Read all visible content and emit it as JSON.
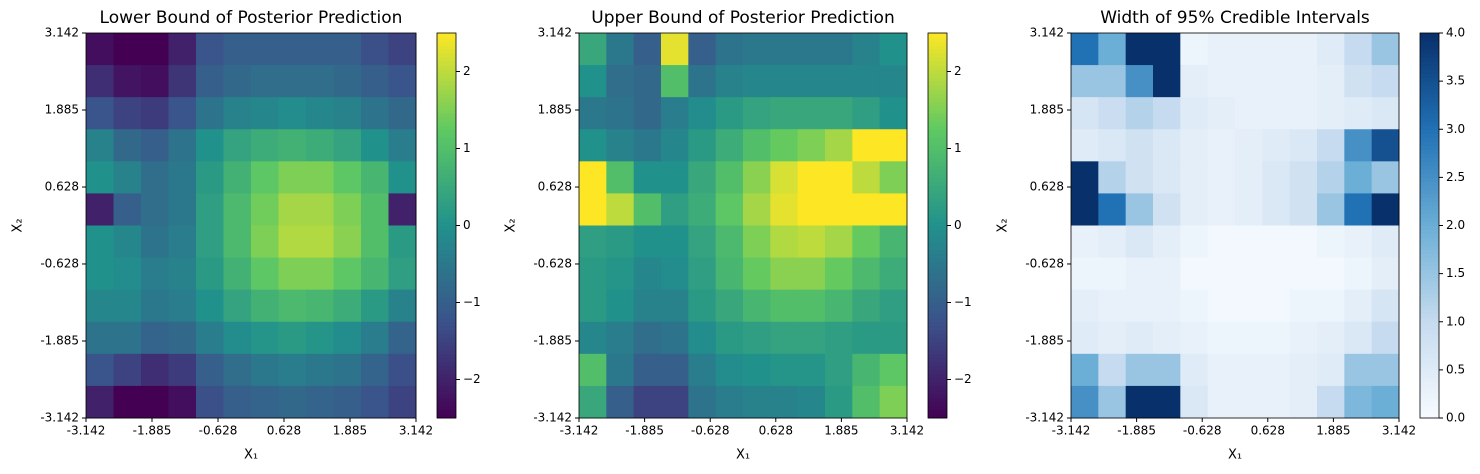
{
  "chart_data": [
    {
      "type": "heatmap",
      "title": "Lower Bound of Posterior Prediction",
      "x_label": "X₁",
      "y_label": "X₂",
      "xlim": [
        -3.142,
        3.142
      ],
      "ylim": [
        -3.142,
        3.142
      ],
      "xticks": [
        -3.142,
        -1.885,
        -0.628,
        0.628,
        1.885,
        3.142
      ],
      "yticks": [
        -3.142,
        -1.885,
        -0.628,
        0.628,
        1.885,
        3.142
      ],
      "cmap": "viridis",
      "clim": [
        -2.5,
        2.5
      ],
      "cticks": [
        {
          "value": -2,
          "label": "−2"
        },
        {
          "value": -1,
          "label": "−1"
        },
        0,
        1,
        2
      ],
      "z": [
        [
          -2.3,
          -2.5,
          -2.5,
          -2.0,
          -1.2,
          -1.0,
          -1.0,
          -1.0,
          -1.0,
          -1.0,
          -1.3,
          -1.5
        ],
        [
          -1.8,
          -2.2,
          -2.3,
          -1.7,
          -1.0,
          -0.8,
          -0.7,
          -0.7,
          -0.7,
          -0.8,
          -1.0,
          -1.2
        ],
        [
          -1.2,
          -1.5,
          -1.6,
          -1.2,
          -0.6,
          -0.3,
          -0.2,
          -0.1,
          -0.2,
          -0.3,
          -0.6,
          -0.8
        ],
        [
          -0.3,
          -0.8,
          -1.0,
          -0.6,
          0.0,
          0.4,
          0.6,
          0.7,
          0.6,
          0.4,
          0.0,
          -0.4
        ],
        [
          0.0,
          -0.3,
          -0.7,
          -0.5,
          0.2,
          0.7,
          1.2,
          1.5,
          1.5,
          1.2,
          0.8,
          0.0
        ],
        [
          -2.0,
          -1.0,
          -0.7,
          -0.5,
          0.3,
          0.9,
          1.4,
          1.8,
          1.8,
          1.5,
          1.0,
          -2.0
        ],
        [
          0.0,
          -0.2,
          -0.6,
          -0.4,
          0.3,
          0.9,
          1.5,
          1.9,
          1.9,
          1.6,
          1.0,
          0.2
        ],
        [
          0.0,
          -0.1,
          -0.4,
          -0.3,
          0.2,
          0.7,
          1.2,
          1.5,
          1.5,
          1.2,
          0.8,
          0.3
        ],
        [
          -0.2,
          -0.2,
          -0.5,
          -0.4,
          0.0,
          0.4,
          0.7,
          0.9,
          0.8,
          0.6,
          0.2,
          -0.3
        ],
        [
          -0.6,
          -0.6,
          -0.9,
          -0.8,
          -0.4,
          -0.1,
          0.1,
          0.2,
          0.1,
          -0.1,
          -0.4,
          -0.9
        ],
        [
          -1.2,
          -1.5,
          -1.8,
          -1.6,
          -1.0,
          -0.7,
          -0.5,
          -0.4,
          -0.5,
          -0.6,
          -0.9,
          -1.3
        ],
        [
          -2.0,
          -2.5,
          -2.5,
          -2.3,
          -1.3,
          -1.0,
          -0.9,
          -0.8,
          -0.9,
          -1.0,
          -1.2,
          -1.5
        ]
      ]
    },
    {
      "type": "heatmap",
      "title": "Upper Bound of Posterior Prediction",
      "x_label": "X₁",
      "y_label": "X₂",
      "xlim": [
        -3.142,
        3.142
      ],
      "ylim": [
        -3.142,
        3.142
      ],
      "xticks": [
        -3.142,
        -1.885,
        -0.628,
        0.628,
        1.885,
        3.142
      ],
      "yticks": [
        -3.142,
        -1.885,
        -0.628,
        0.628,
        1.885,
        3.142
      ],
      "cmap": "viridis",
      "clim": [
        -2.5,
        2.5
      ],
      "cticks": [
        {
          "value": -2,
          "label": "−2"
        },
        {
          "value": -1,
          "label": "−1"
        },
        0,
        1,
        2
      ],
      "z": [
        [
          0.5,
          -0.5,
          -1.0,
          2.3,
          -1.0,
          -0.6,
          -0.5,
          -0.5,
          -0.5,
          -0.5,
          -0.3,
          0.0
        ],
        [
          0.0,
          -0.7,
          -0.8,
          1.0,
          -0.6,
          -0.3,
          -0.2,
          -0.2,
          -0.2,
          -0.2,
          -0.2,
          -0.2
        ],
        [
          -0.5,
          -0.6,
          -0.8,
          -0.4,
          -0.1,
          0.2,
          0.4,
          0.5,
          0.5,
          0.5,
          0.3,
          0.0
        ],
        [
          0.0,
          -0.3,
          -0.5,
          -0.2,
          0.2,
          0.6,
          1.0,
          1.3,
          1.5,
          1.8,
          2.5,
          2.5
        ],
        [
          2.5,
          1.0,
          0.0,
          0.0,
          0.5,
          1.0,
          1.6,
          2.2,
          2.5,
          2.5,
          2.0,
          1.5
        ],
        [
          2.5,
          2.0,
          1.0,
          0.3,
          0.6,
          1.2,
          1.8,
          2.3,
          2.5,
          2.5,
          2.5,
          2.5
        ],
        [
          0.3,
          0.2,
          0.0,
          0.0,
          0.4,
          0.9,
          1.5,
          1.9,
          2.0,
          1.8,
          1.3,
          0.8
        ],
        [
          0.2,
          0.1,
          -0.2,
          -0.1,
          0.3,
          0.8,
          1.3,
          1.6,
          1.6,
          1.3,
          0.9,
          0.6
        ],
        [
          0.2,
          0.0,
          -0.3,
          -0.3,
          0.2,
          0.5,
          0.8,
          1.0,
          1.0,
          0.8,
          0.5,
          0.3
        ],
        [
          -0.2,
          -0.4,
          -0.7,
          -0.6,
          -0.1,
          0.2,
          0.3,
          0.4,
          0.4,
          0.3,
          0.2,
          0.2
        ],
        [
          1.0,
          -0.5,
          -1.0,
          -1.0,
          -0.4,
          -0.1,
          0.0,
          0.1,
          0.1,
          0.3,
          0.8,
          1.2
        ],
        [
          0.5,
          -1.0,
          -1.5,
          -1.5,
          -0.6,
          -0.4,
          -0.3,
          -0.3,
          -0.2,
          0.2,
          1.0,
          1.5
        ]
      ]
    },
    {
      "type": "heatmap",
      "title": "Width of 95% Credible Intervals",
      "x_label": "X₁",
      "y_label": "X₂",
      "xlim": [
        -3.142,
        3.142
      ],
      "ylim": [
        -3.142,
        3.142
      ],
      "xticks": [
        -3.142,
        -1.885,
        -0.628,
        0.628,
        1.885,
        3.142
      ],
      "yticks": [
        -3.142,
        -1.885,
        -0.628,
        0.628,
        1.885,
        3.142
      ],
      "cmap": "blues",
      "clim": [
        0,
        4
      ],
      "cticks": [
        {
          "value": 0,
          "label": "0.0"
        },
        0.5,
        {
          "value": 1,
          "label": "1.0"
        },
        1.5,
        {
          "value": 2,
          "label": "2.0"
        },
        2.5,
        {
          "value": 3,
          "label": "3.0"
        },
        3.5,
        {
          "value": 4,
          "label": "4.0"
        }
      ],
      "z": [
        [
          3.0,
          2.0,
          4.0,
          4.0,
          0.2,
          0.3,
          0.3,
          0.3,
          0.3,
          0.5,
          1.0,
          1.5
        ],
        [
          1.5,
          1.5,
          2.5,
          4.0,
          0.4,
          0.3,
          0.3,
          0.3,
          0.3,
          0.4,
          0.8,
          1.0
        ],
        [
          0.7,
          0.9,
          1.2,
          1.0,
          0.5,
          0.4,
          0.3,
          0.3,
          0.3,
          0.4,
          0.5,
          0.6
        ],
        [
          0.5,
          0.6,
          0.8,
          0.6,
          0.4,
          0.3,
          0.4,
          0.5,
          0.6,
          1.0,
          2.5,
          3.5
        ],
        [
          4.0,
          1.2,
          0.8,
          0.6,
          0.4,
          0.3,
          0.4,
          0.6,
          0.8,
          1.2,
          2.0,
          1.5
        ],
        [
          4.0,
          3.0,
          1.5,
          0.8,
          0.4,
          0.3,
          0.4,
          0.6,
          0.8,
          1.5,
          3.0,
          4.0
        ],
        [
          0.3,
          0.4,
          0.6,
          0.4,
          0.2,
          0.1,
          0.1,
          0.1,
          0.1,
          0.2,
          0.3,
          0.5
        ],
        [
          0.2,
          0.2,
          0.3,
          0.3,
          0.1,
          0.1,
          0.1,
          0.1,
          0.1,
          0.1,
          0.2,
          0.4
        ],
        [
          0.4,
          0.3,
          0.3,
          0.3,
          0.2,
          0.1,
          0.1,
          0.1,
          0.2,
          0.2,
          0.4,
          0.7
        ],
        [
          0.5,
          0.4,
          0.5,
          0.4,
          0.3,
          0.2,
          0.2,
          0.2,
          0.3,
          0.4,
          0.6,
          1.0
        ],
        [
          2.0,
          1.0,
          1.5,
          1.5,
          0.5,
          0.3,
          0.3,
          0.3,
          0.4,
          0.5,
          1.5,
          1.5
        ],
        [
          2.5,
          1.5,
          4.0,
          4.0,
          0.6,
          0.3,
          0.3,
          0.3,
          0.4,
          1.0,
          1.8,
          2.0
        ]
      ]
    }
  ]
}
